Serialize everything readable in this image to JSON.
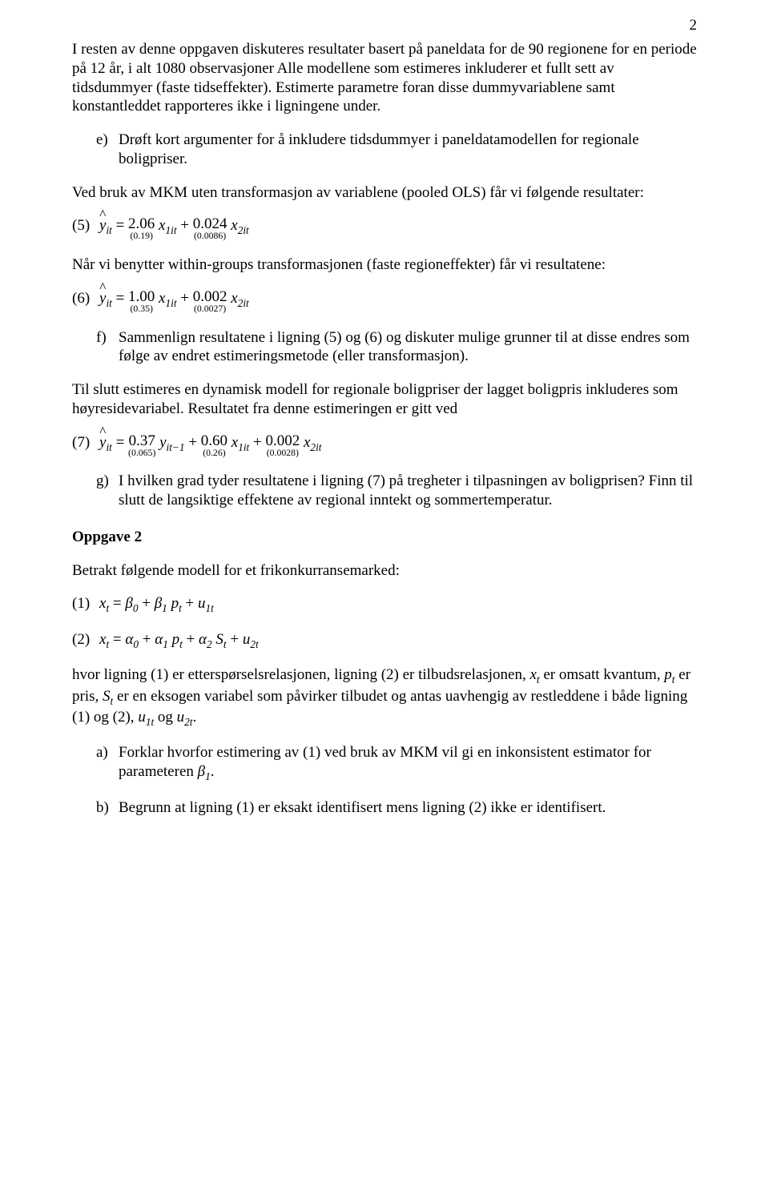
{
  "page_number": "2",
  "p1": "I resten av denne oppgaven diskuteres resultater basert på paneldata for de 90 regionene for en periode på 12 år, i alt 1080 observasjoner Alle modellene som estimeres inkluderer et fullt sett av tidsdummyer (faste tidseffekter). Estimerte parametre foran disse dummyvariablene samt konstantleddet rapporteres ikke i ligningene under.",
  "item_e_marker": "e)",
  "item_e": "Drøft kort argumenter for å inkludere tidsdummyer i paneldatamodellen for regionale boligpriser.",
  "p2": "Ved bruk av MKM uten transformasjon av variablene (pooled OLS) får vi følgende resultater:",
  "eq5_label": "(5)",
  "eq5": {
    "lhs_var": "y",
    "lhs_sub": "it",
    "c1": "2.06",
    "se1": "(0.19)",
    "x1": "x",
    "x1_sub": "1it",
    "c2": "0.024",
    "se2": "(0.0086)",
    "x2": "x",
    "x2_sub": "2it"
  },
  "p3": "Når vi benytter within-groups transformasjonen (faste regioneffekter) får vi resultatene:",
  "eq6_label": "(6)",
  "eq6": {
    "lhs_var": "y",
    "lhs_sub": "it",
    "c1": "1.00",
    "se1": "(0.35)",
    "x1": "x",
    "x1_sub": "1it",
    "c2": "0.002",
    "se2": "(0.0027)",
    "x2": "x",
    "x2_sub": "2it"
  },
  "item_f_marker": "f)",
  "item_f": "Sammenlign resultatene i ligning (5) og (6) og diskuter mulige grunner til at disse endres som følge av endret estimeringsmetode (eller transformasjon).",
  "p4": "Til slutt estimeres en dynamisk modell for regionale boligpriser der lagget boligpris inkluderes som høyresidevariabel. Resultatet fra denne estimeringen er gitt ved",
  "eq7_label": "(7)",
  "eq7": {
    "lhs_var": "y",
    "lhs_sub": "it",
    "c1": "0.37",
    "se1": "(0.065)",
    "v1": "y",
    "v1_sub": "it−1",
    "c2": "0.60",
    "se2": "(0.26)",
    "v2": "x",
    "v2_sub": "1it",
    "c3": "0.002",
    "se3": "(0.0028)",
    "v3": "x",
    "v3_sub": "2it"
  },
  "item_g_marker": "g)",
  "item_g": "I hvilken grad tyder resultatene i ligning (7) på tregheter i tilpasningen av boligprisen? Finn til slutt de langsiktige effektene av regional inntekt og sommertemperatur.",
  "section2_head": "Oppgave 2",
  "p5": "Betrakt følgende modell for et frikonkurransemarked:",
  "eq1_label": "(1)",
  "eq1_math": {
    "lhs": "x",
    "lhs_sub": "t",
    "b0": "β",
    "b0_sub": "0",
    "b1": "β",
    "b1_sub": "1",
    "p": "p",
    "p_sub": "t",
    "u": "u",
    "u_sub": "1t"
  },
  "eq2_label": "(2)",
  "eq2_math": {
    "lhs": "x",
    "lhs_sub": "t",
    "a0": "α",
    "a0_sub": "0",
    "a1": "α",
    "a1_sub": "1",
    "p": "p",
    "p_sub": "t",
    "a2": "α",
    "a2_sub": "2",
    "S": "S",
    "S_sub": "t",
    "u": "u",
    "u_sub": "2t"
  },
  "p6_a": "hvor ligning (1) er etterspørselsrelasjonen, ligning (2) er tilbudsrelasjonen, ",
  "p6_b": " er omsatt kvantum, ",
  "p6_c": " er pris, ",
  "p6_d": " er en eksogen variabel som påvirker tilbudet og antas uavhengig av restleddene i både ligning (1) og (2), ",
  "p6_e": " og ",
  "p6_f": ".",
  "sym_xt": {
    "v": "x",
    "s": "t"
  },
  "sym_pt": {
    "v": "p",
    "s": "t"
  },
  "sym_St": {
    "v": "S",
    "s": "t"
  },
  "sym_u1t": {
    "v": "u",
    "s": "1t"
  },
  "sym_u2t": {
    "v": "u",
    "s": "2t"
  },
  "item_a_marker": "a)",
  "item_a_a": "Forklar hvorfor estimering av (1) ved bruk av MKM vil gi en inkonsistent estimator for parameteren ",
  "item_a_b": ".",
  "sym_b1": {
    "v": "β",
    "s": "1"
  },
  "item_b_marker": "b)",
  "item_b": "Begrunn at ligning (1) er eksakt identifisert mens ligning (2) ikke er identifisert."
}
